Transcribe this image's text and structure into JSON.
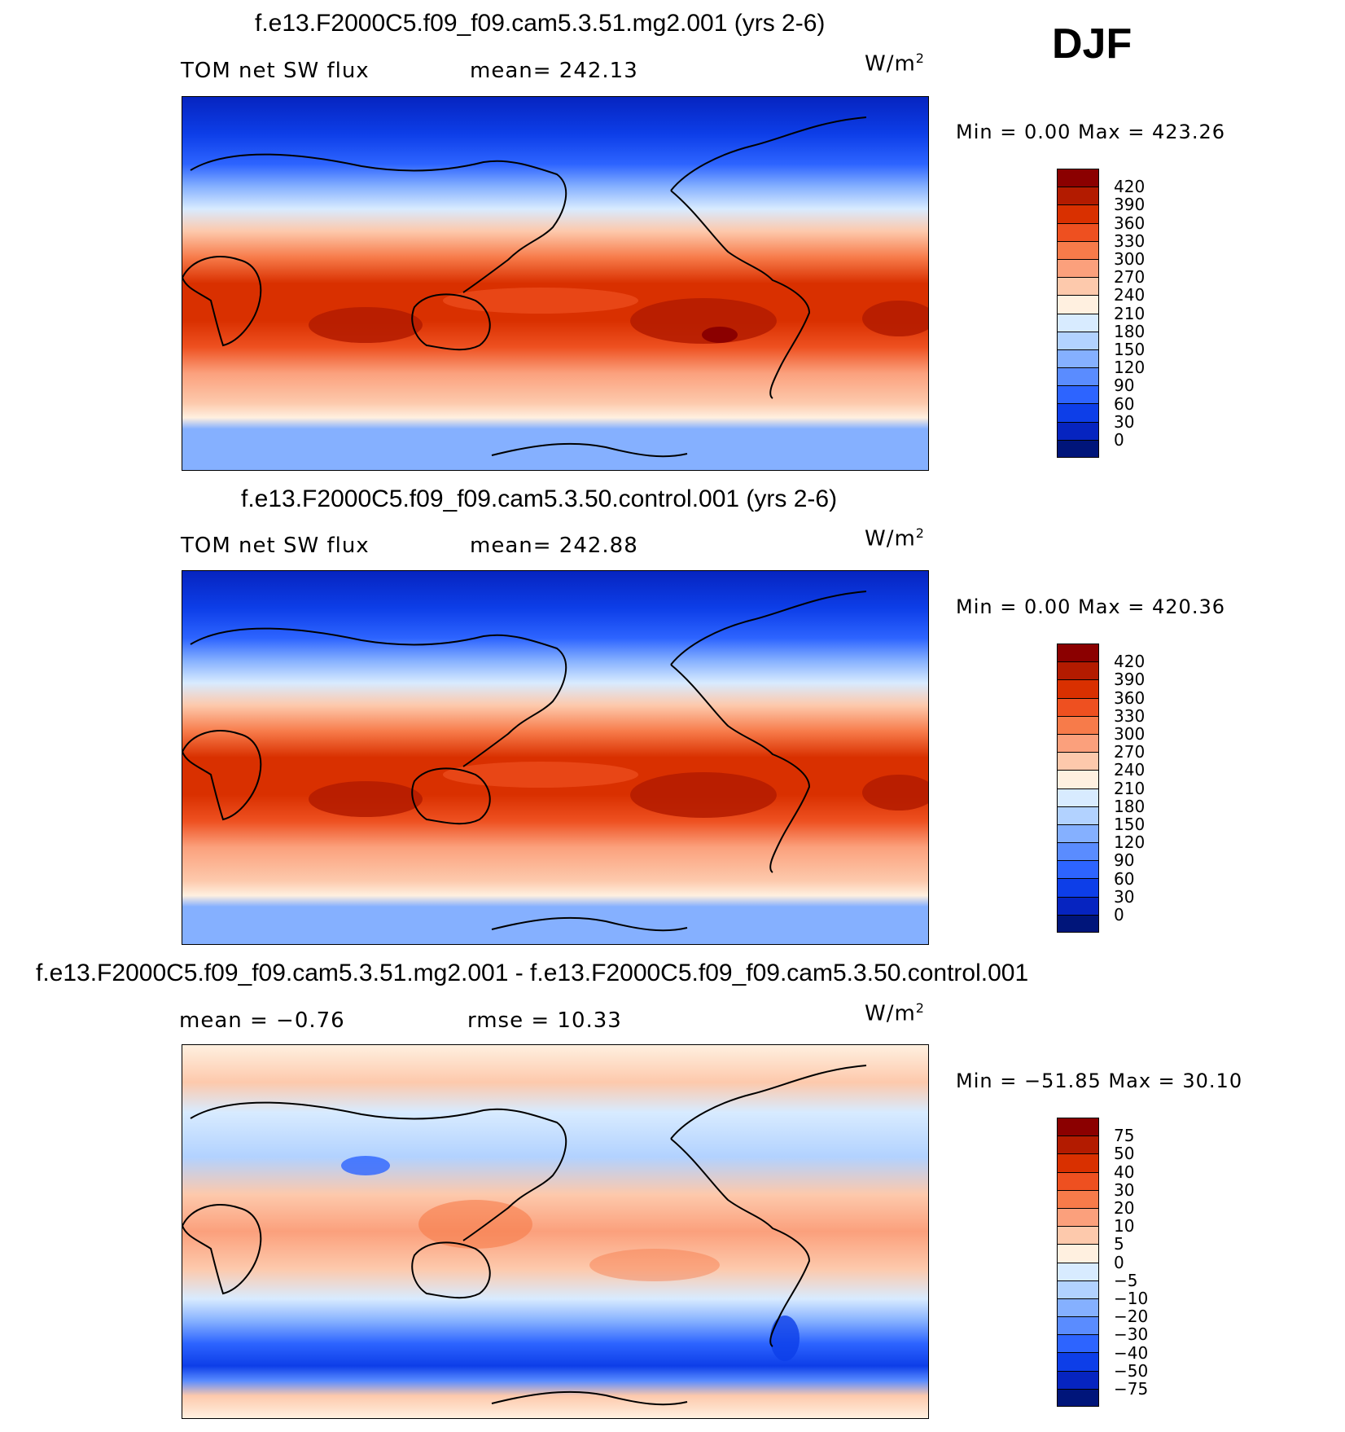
{
  "season": "DJF",
  "panels": [
    {
      "title": "f.e13.F2000C5.f09_f09.cam5.3.51.mg2.001 (yrs 2-6)",
      "left_label": "TOM net SW flux",
      "center_label": "mean=  242.13",
      "units": "W/m",
      "units_sup": "2",
      "minmax": "Min  =     0.00  Max  =  423.26",
      "levels": [
        "420",
        "390",
        "360",
        "330",
        "300",
        "270",
        "240",
        "210",
        "180",
        "150",
        "120",
        "90",
        "60",
        "30",
        "0"
      ],
      "colors": [
        "#8b0000",
        "#b31b00",
        "#d93000",
        "#ee5020",
        "#f77b4a",
        "#fba07c",
        "#fdc9ac",
        "#fff0e0",
        "#d8ebff",
        "#b2d2ff",
        "#85b0ff",
        "#5a8cff",
        "#2d64ff",
        "#0d3ee8",
        "#0624c0",
        "#00157a"
      ]
    },
    {
      "title": "f.e13.F2000C5.f09_f09.cam5.3.50.control.001 (yrs 2-6)",
      "left_label": "TOM net SW flux",
      "center_label": "mean=  242.88",
      "units": "W/m",
      "units_sup": "2",
      "minmax": "Min  =     0.00  Max  =  420.36",
      "levels": [
        "420",
        "390",
        "360",
        "330",
        "300",
        "270",
        "240",
        "210",
        "180",
        "150",
        "120",
        "90",
        "60",
        "30",
        "0"
      ],
      "colors": [
        "#8b0000",
        "#b31b00",
        "#d93000",
        "#ee5020",
        "#f77b4a",
        "#fba07c",
        "#fdc9ac",
        "#fff0e0",
        "#d8ebff",
        "#b2d2ff",
        "#85b0ff",
        "#5a8cff",
        "#2d64ff",
        "#0d3ee8",
        "#0624c0",
        "#00157a"
      ]
    },
    {
      "title": "f.e13.F2000C5.f09_f09.cam5.3.51.mg2.001 - f.e13.F2000C5.f09_f09.cam5.3.50.control.001",
      "left_label": "mean  =    −0.76",
      "center_label": "rmse  =    10.33",
      "units": "W/m",
      "units_sup": "2",
      "minmax": "Min  = −51.85  Max  =    30.10",
      "levels": [
        "75",
        "50",
        "40",
        "30",
        "20",
        "10",
        "5",
        "0",
        "−5",
        "−10",
        "−20",
        "−30",
        "−40",
        "−50",
        "−75"
      ],
      "colors": [
        "#8b0000",
        "#b31b00",
        "#d93000",
        "#ee5020",
        "#f77b4a",
        "#fba07c",
        "#fdc9ac",
        "#fff0e0",
        "#d8ebff",
        "#b2d2ff",
        "#85b0ff",
        "#5a8cff",
        "#2d64ff",
        "#0d3ee8",
        "#0624c0",
        "#00157a"
      ]
    }
  ]
}
